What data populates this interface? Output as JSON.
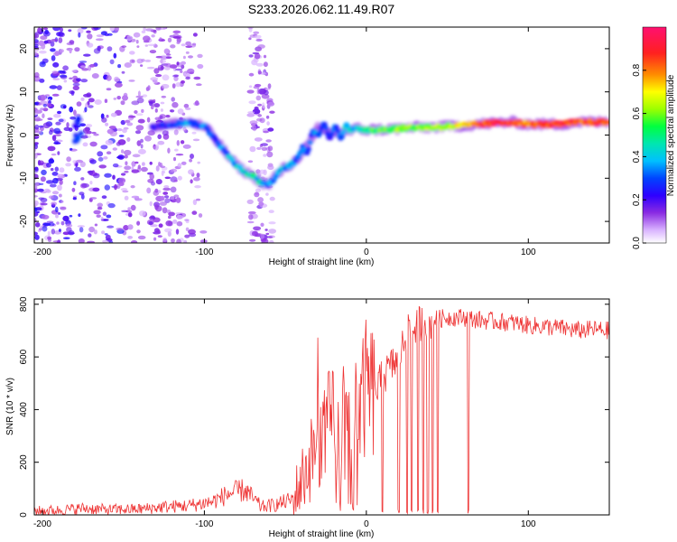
{
  "figure": {
    "title": "S233.2026.062.11.49.R07"
  },
  "chart_data": [
    {
      "type": "heatmap",
      "xlabel": "Height of straight line (km)",
      "ylabel": "Frequency (Hz)",
      "xlim": [
        -205,
        150
      ],
      "ylim": [
        -25,
        25
      ],
      "xticks": [
        -200,
        -100,
        0,
        100
      ],
      "yticks": [
        -20,
        -10,
        0,
        10,
        20
      ],
      "colorbar": {
        "label": "Normalized spectral amplitude",
        "range": [
          0,
          1
        ],
        "ticks": [
          0.0,
          0.2,
          0.4,
          0.6,
          0.8
        ],
        "colors": [
          "#ffffff",
          "#d9b3ff",
          "#8a2be2",
          "#2e00ff",
          "#0044ff",
          "#00c0ff",
          "#00e6b0",
          "#00ff40",
          "#9cff00",
          "#ffff00",
          "#ff8c00",
          "#ff2020",
          "#ff1070"
        ]
      },
      "ridge": {
        "x": [
          -130,
          -120,
          -110,
          -100,
          -95,
          -90,
          -85,
          -80,
          -75,
          -70,
          -65,
          -60,
          -55,
          -50,
          -45,
          -40,
          -35,
          -30,
          -25,
          -20,
          -15,
          -10,
          -5,
          0,
          10,
          20,
          30,
          40,
          50,
          60,
          70,
          80,
          90,
          100,
          110,
          120,
          130,
          140,
          150
        ],
        "frequency": [
          2,
          2.5,
          3,
          2,
          0,
          -2.5,
          -5,
          -7,
          -8.5,
          -9.5,
          -11,
          -11.5,
          -9,
          -7.5,
          -6.5,
          -4,
          -2,
          1.5,
          1,
          0.5,
          0.8,
          1,
          1.5,
          1.2,
          1.3,
          1.5,
          1.8,
          1.8,
          2,
          2.2,
          2.5,
          2.8,
          3,
          2.5,
          2.5,
          2.5,
          3,
          3,
          3
        ],
        "amplitude": [
          0.25,
          0.3,
          0.35,
          0.3,
          0.3,
          0.32,
          0.35,
          0.4,
          0.42,
          0.45,
          0.4,
          0.3,
          0.35,
          0.4,
          0.35,
          0.3,
          0.3,
          0.35,
          0.3,
          0.3,
          0.35,
          0.4,
          0.45,
          0.5,
          0.55,
          0.6,
          0.6,
          0.62,
          0.65,
          0.7,
          0.85,
          0.9,
          0.88,
          0.8,
          0.85,
          0.9,
          0.85,
          0.85,
          0.85
        ]
      }
    },
    {
      "type": "line",
      "xlabel": "Height of straight line (km)",
      "ylabel": "SNR (10 * v/v)",
      "xlim": [
        -205,
        150
      ],
      "ylim": [
        0,
        820
      ],
      "xticks": [
        -200,
        -100,
        0,
        100
      ],
      "yticks": [
        0,
        200,
        400,
        600,
        800
      ],
      "line_color": "#ee3333",
      "series": [
        {
          "x": [
            -205,
            -190,
            -175,
            -160,
            -140,
            -125,
            -110,
            -95,
            -85,
            -75,
            -65,
            -55,
            -45,
            -40,
            -35,
            -30,
            -25,
            -20,
            -15,
            -10,
            -5,
            0,
            5,
            10,
            15,
            20,
            25,
            30,
            35,
            40,
            50,
            60,
            70,
            80,
            90,
            100,
            110,
            120,
            130,
            140,
            150
          ],
          "values": [
            15,
            18,
            25,
            20,
            22,
            30,
            35,
            50,
            80,
            95,
            30,
            40,
            60,
            130,
            200,
            280,
            330,
            350,
            300,
            320,
            380,
            480,
            460,
            520,
            560,
            600,
            680,
            720,
            730,
            740,
            750,
            750,
            740,
            735,
            730,
            720,
            715,
            710,
            700,
            705,
            700
          ]
        }
      ],
      "dropouts_x": [
        10,
        20,
        25,
        28,
        32,
        35,
        38,
        41,
        44,
        63
      ]
    }
  ]
}
